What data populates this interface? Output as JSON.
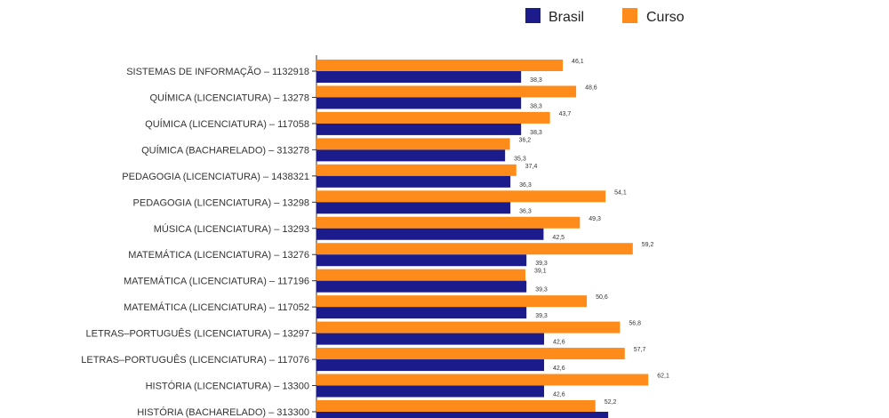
{
  "chart_data": {
    "type": "bar",
    "orientation": "horizontal",
    "legend_position": "top-right",
    "grid": false,
    "xlim": [
      0,
      70
    ],
    "categories": [
      "SISTEMAS DE INFORMAÇÃO – 1132918",
      "QUÍMICA (LICENCIATURA) – 13278",
      "QUÍMICA (LICENCIATURA) – 117058",
      "QUÍMICA (BACHARELADO) – 313278",
      "PEDAGOGIA (LICENCIATURA) – 1438321",
      "PEDAGOGIA (LICENCIATURA) – 13298",
      "MÚSICA (LICENCIATURA) – 13293",
      "MATEMÁTICA (LICENCIATURA) – 13276",
      "MATEMÁTICA (LICENCIATURA) – 117196",
      "MATEMÁTICA (LICENCIATURA) – 117052",
      "LETRAS–PORTUGUÊS (LICENCIATURA) – 13297",
      "LETRAS–PORTUGUÊS (LICENCIATURA) – 117076",
      "HISTÓRIA (LICENCIATURA) – 13300",
      "HISTÓRIA (BACHARELADO) – 313300"
    ],
    "series": [
      {
        "name": "Brasil",
        "color": "#1b1b8c",
        "values": [
          38.3,
          38.3,
          38.3,
          35.3,
          36.3,
          36.3,
          42.5,
          39.3,
          39.3,
          39.3,
          42.6,
          42.6,
          42.6,
          54.6
        ],
        "labels": [
          "38,3",
          "38,3",
          "38,3",
          "35,3",
          "36,3",
          "36,3",
          "42,5",
          "39,3",
          "39,3",
          "39,3",
          "42,6",
          "42,6",
          "42,6",
          ""
        ]
      },
      {
        "name": "Curso",
        "color": "#ff8c1a",
        "values": [
          46.1,
          48.6,
          43.7,
          36.2,
          37.4,
          54.1,
          49.3,
          59.2,
          39.1,
          50.6,
          56.8,
          57.7,
          62.1,
          52.2
        ],
        "labels": [
          "46,1",
          "48,6",
          "43,7",
          "36,2",
          "37,4",
          "54,1",
          "49,3",
          "59,2",
          "39,1",
          "50,6",
          "56,8",
          "57,7",
          "62,1",
          "52,2"
        ]
      }
    ]
  }
}
